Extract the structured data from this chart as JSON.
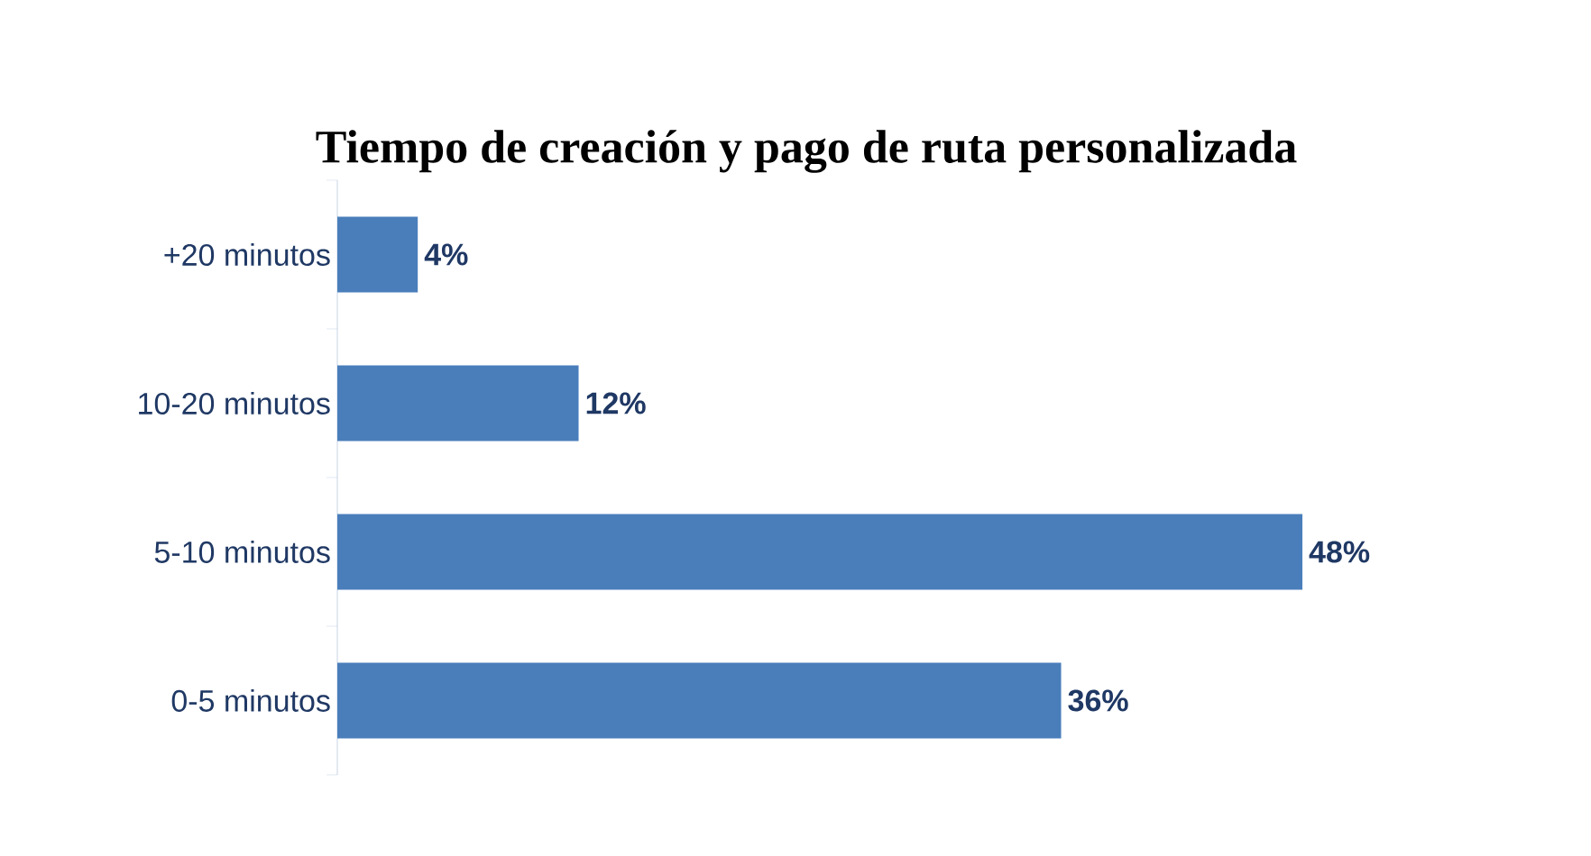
{
  "chart_data": {
    "type": "bar",
    "orientation": "horizontal",
    "title": "Tiempo de creación y pago de ruta personalizada",
    "categories": [
      "+20 minutos",
      "10-20 minutos",
      "5-10 minutos",
      "0-5 minutos"
    ],
    "values": [
      4,
      12,
      48,
      36
    ],
    "value_labels": [
      "4%",
      "12%",
      "48%",
      "36%"
    ],
    "color": "#4a7ebb"
  }
}
